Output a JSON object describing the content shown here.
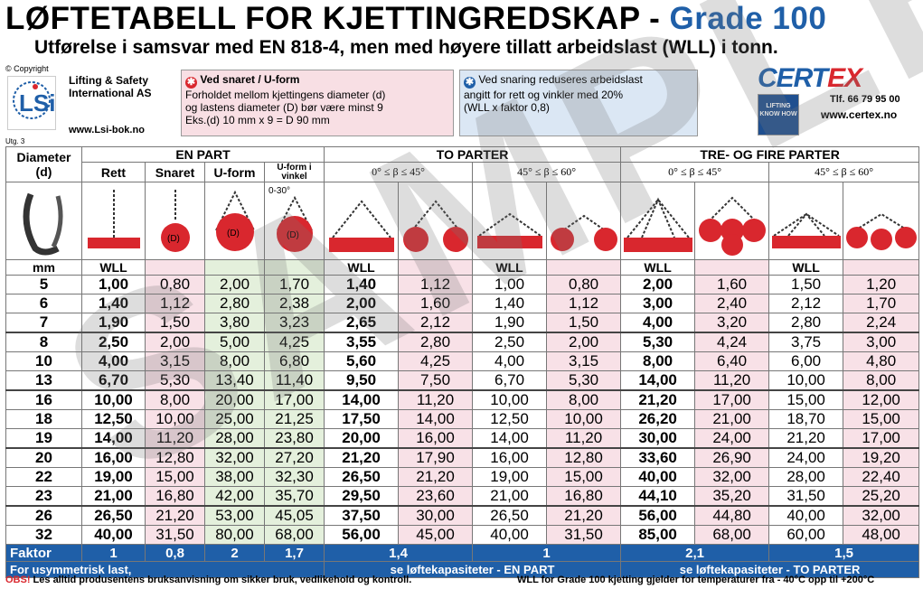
{
  "header": {
    "title": "LØFTETABELL FOR KJETTINGREDSKAP - ",
    "grade": "Grade 100",
    "subtitle": "Utførelse i samsvar med EN 818-4, men med høyere tillatt arbeidslast (WLL) i tonn."
  },
  "publisher": {
    "copyright": "© Copyright",
    "company_line1": "Lifting & Safety",
    "company_line2": "International AS",
    "url": "www.Lsi-bok.no",
    "edition": "Utg. 3"
  },
  "info_red": {
    "heading": "Ved snaret / U-form",
    "line1": "Forholdet mellom kjettingens diameter (d)",
    "line2": "og lastens diameter (D) bør være minst 9",
    "line3": "Eks.(d) 10 mm x 9 = D 90 mm"
  },
  "info_blue": {
    "line1": "Ved snaring reduseres arbeidslast",
    "line2": "angitt for rett og vinkler med 20%",
    "line3": "(WLL x faktor 0,8)"
  },
  "certex": {
    "logo_a": "CERT",
    "logo_b": "EX",
    "badge": "LIFTING KNOW HOW",
    "tel": "Tlf. 66 79 95 00",
    "url": "www.certex.no"
  },
  "table": {
    "col_diameter": "Diameter",
    "col_d": "(d)",
    "group_en": "EN PART",
    "group_to": "TO PARTER",
    "group_tre": "TRE- OG FIRE PARTER",
    "sub_rett": "Rett",
    "sub_snaret": "Snaret",
    "sub_uform": "U-form",
    "sub_uvinkel": "U-form i vinkel",
    "angle_a": "0° ≤ β ≤ 45°",
    "angle_b": "45° ≤ β ≤ 60°",
    "uvinkel_angle": "0-30°",
    "unit_mm": "mm",
    "wll": "WLL",
    "rows": [
      [
        "5",
        "1,00",
        "0,80",
        "2,00",
        "1,70",
        "1,40",
        "1,12",
        "1,00",
        "0,80",
        "2,00",
        "1,60",
        "1,50",
        "1,20"
      ],
      [
        "6",
        "1,40",
        "1,12",
        "2,80",
        "2,38",
        "2,00",
        "1,60",
        "1,40",
        "1,12",
        "3,00",
        "2,40",
        "2,12",
        "1,70"
      ],
      [
        "7",
        "1,90",
        "1,50",
        "3,80",
        "3,23",
        "2,65",
        "2,12",
        "1,90",
        "1,50",
        "4,00",
        "3,20",
        "2,80",
        "2,24"
      ],
      [
        "8",
        "2,50",
        "2,00",
        "5,00",
        "4,25",
        "3,55",
        "2,80",
        "2,50",
        "2,00",
        "5,30",
        "4,24",
        "3,75",
        "3,00"
      ],
      [
        "10",
        "4,00",
        "3,15",
        "8,00",
        "6,80",
        "5,60",
        "4,25",
        "4,00",
        "3,15",
        "8,00",
        "6,40",
        "6,00",
        "4,80"
      ],
      [
        "13",
        "6,70",
        "5,30",
        "13,40",
        "11,40",
        "9,50",
        "7,50",
        "6,70",
        "5,30",
        "14,00",
        "11,20",
        "10,00",
        "8,00"
      ],
      [
        "16",
        "10,00",
        "8,00",
        "20,00",
        "17,00",
        "14,00",
        "11,20",
        "10,00",
        "8,00",
        "21,20",
        "17,00",
        "15,00",
        "12,00"
      ],
      [
        "18",
        "12,50",
        "10,00",
        "25,00",
        "21,25",
        "17,50",
        "14,00",
        "12,50",
        "10,00",
        "26,20",
        "21,00",
        "18,70",
        "15,00"
      ],
      [
        "19",
        "14,00",
        "11,20",
        "28,00",
        "23,80",
        "20,00",
        "16,00",
        "14,00",
        "11,20",
        "30,00",
        "24,00",
        "21,20",
        "17,00"
      ],
      [
        "20",
        "16,00",
        "12,80",
        "32,00",
        "27,20",
        "21,20",
        "17,90",
        "16,00",
        "12,80",
        "33,60",
        "26,90",
        "24,00",
        "19,20"
      ],
      [
        "22",
        "19,00",
        "15,00",
        "38,00",
        "32,30",
        "26,50",
        "21,20",
        "19,00",
        "15,00",
        "40,00",
        "32,00",
        "28,00",
        "22,40"
      ],
      [
        "23",
        "21,00",
        "16,80",
        "42,00",
        "35,70",
        "29,50",
        "23,60",
        "21,00",
        "16,80",
        "44,10",
        "35,20",
        "31,50",
        "25,20"
      ],
      [
        "26",
        "26,50",
        "21,20",
        "53,00",
        "45,05",
        "37,50",
        "30,00",
        "26,50",
        "21,20",
        "56,00",
        "44,80",
        "40,00",
        "32,00"
      ],
      [
        "32",
        "40,00",
        "31,50",
        "80,00",
        "68,00",
        "56,00",
        "45,00",
        "40,00",
        "31,50",
        "85,00",
        "68,00",
        "60,00",
        "48,00"
      ]
    ],
    "faktor_label": "Faktor",
    "faktor": [
      "1",
      "0,8",
      "2",
      "1,7",
      "1,4",
      "1",
      "2,1",
      "1,5"
    ],
    "asym_label": "For usymmetrisk last,",
    "asym_en": "se løftekapasiteter - EN PART",
    "asym_to": "se løftekapasiteter - TO PARTER"
  },
  "footer": {
    "obs": "OBS!",
    "left": " Les alltid produsentens bruksanvisning om sikker bruk, vedlikehold og kontroll.",
    "right": "WLL for Grade 100 kjetting gjelder for temperaturer fra - 40°C opp til +200°C"
  },
  "watermark": "SAMPLE"
}
